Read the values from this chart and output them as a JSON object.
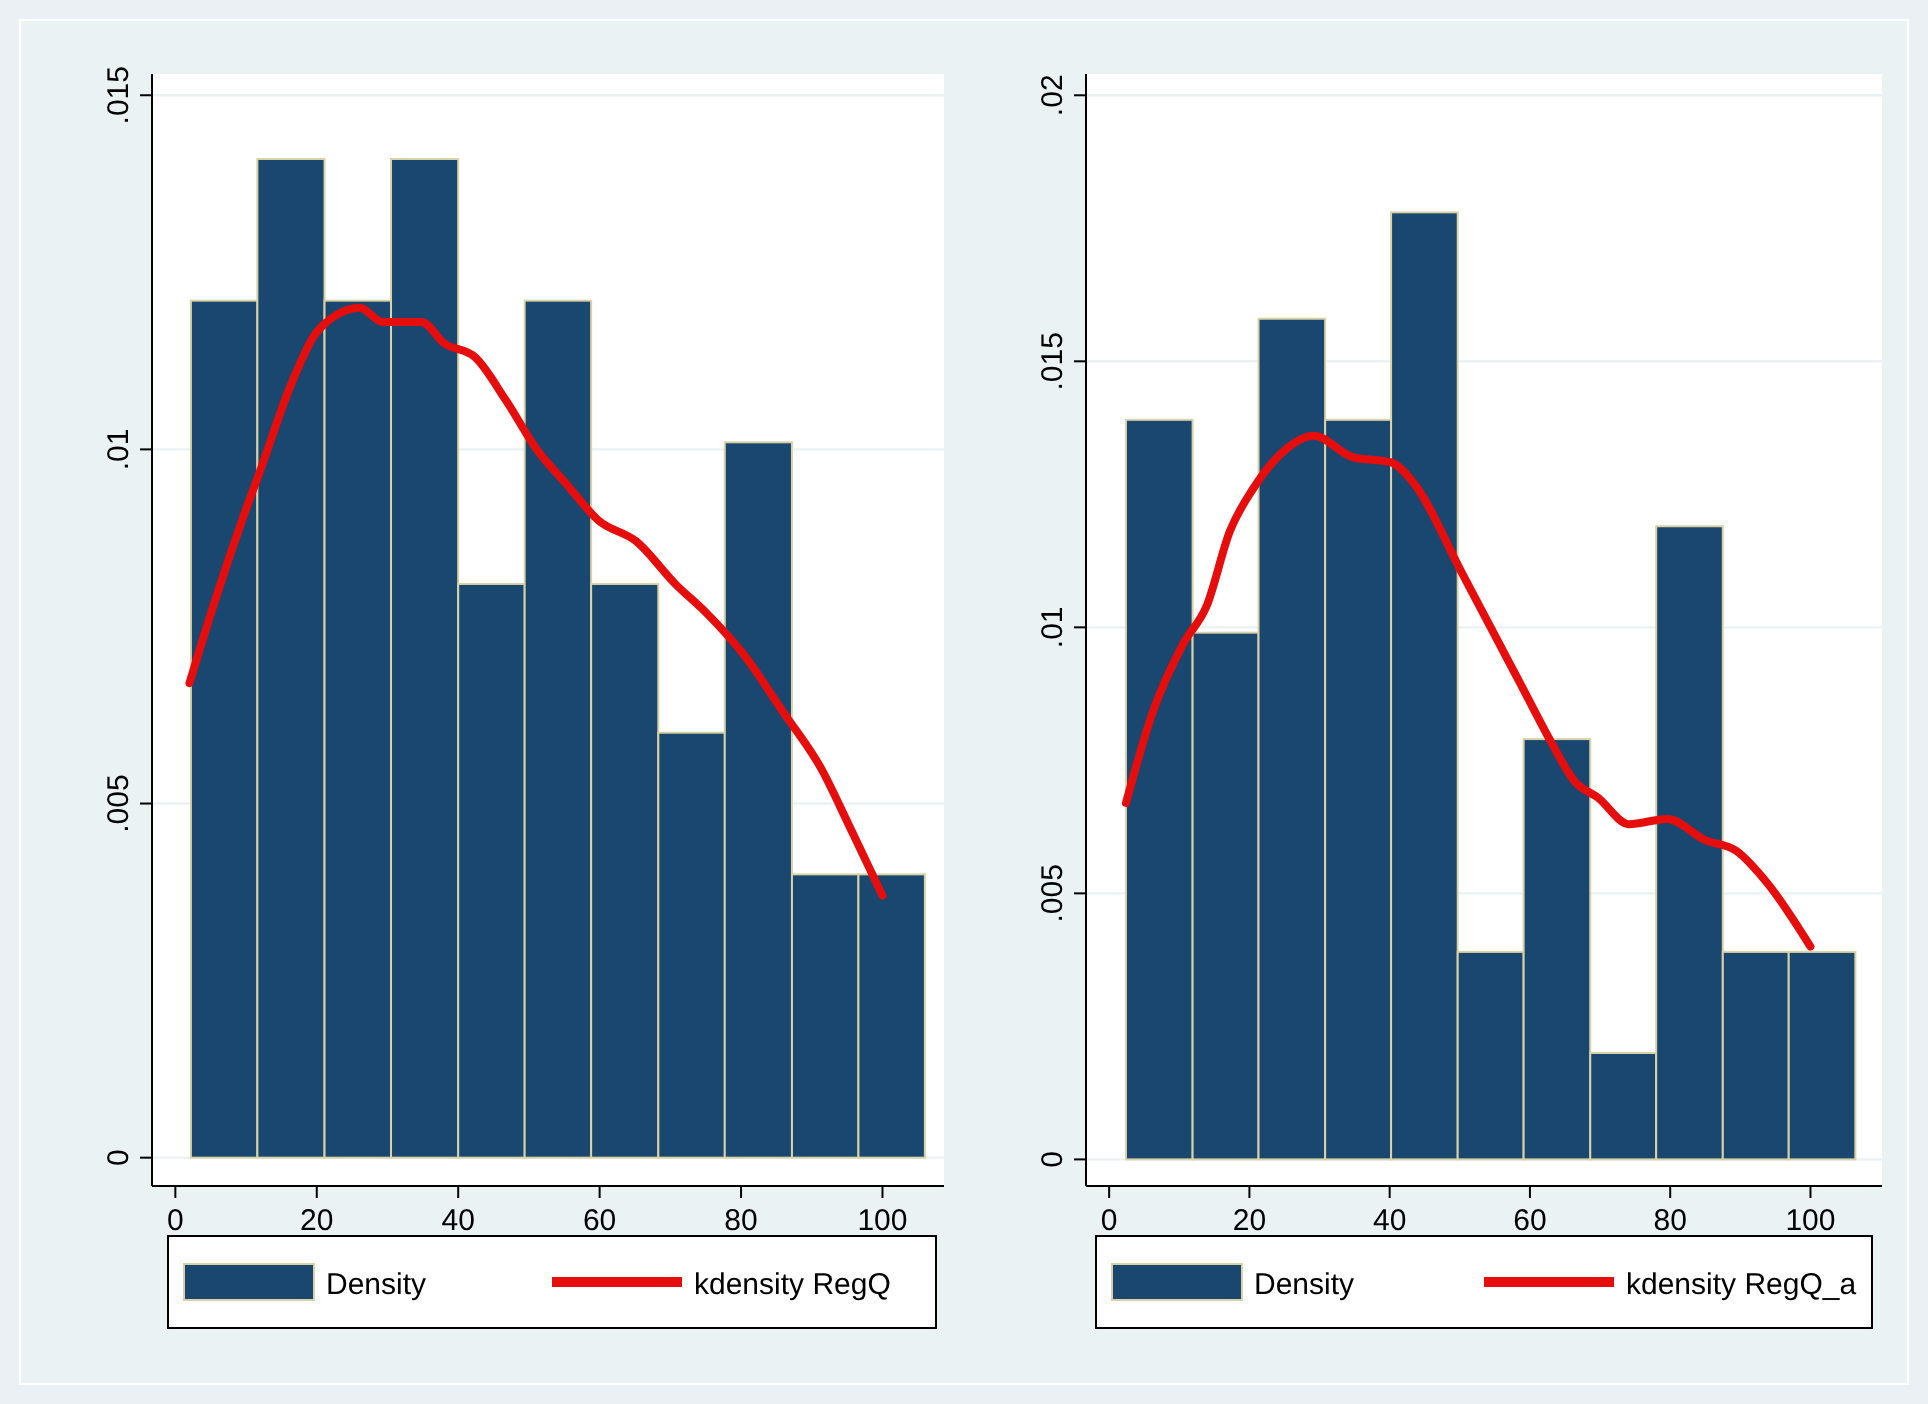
{
  "chart_data": [
    {
      "type": "histogram",
      "bins": [
        2.2,
        11.6,
        21.1,
        30.5,
        40,
        49.4,
        58.8,
        68.3,
        77.7,
        87.2,
        96.6,
        106
      ],
      "series": [
        {
          "name": "Density",
          "color": "#1a476f",
          "values": [
            0.0121,
            0.0141,
            0.0121,
            0.0141,
            0.0081,
            0.0121,
            0.0081,
            0.006,
            0.0101,
            0.004,
            0.004
          ]
        },
        {
          "type": "line",
          "name": "kdensity RegQ",
          "color": "#e60d0d",
          "x": [
            2,
            5.4,
            9.8,
            12,
            16.3,
            19.6,
            22.8,
            26.1,
            29.3,
            34.8,
            38,
            42.4,
            46.7,
            51.1,
            55.4,
            59.8,
            65.2,
            70.7,
            75,
            80.4,
            85.9,
            91.3,
            95.7,
            100
          ],
          "values": [
            0.0067,
            0.0078,
            0.0091,
            0.0097,
            0.0109,
            0.0116,
            0.0119,
            0.012,
            0.0118,
            0.0118,
            0.0115,
            0.0113,
            0.0107,
            0.01,
            0.0095,
            0.009,
            0.0087,
            0.0081,
            0.0077,
            0.0071,
            0.0063,
            0.0055,
            0.0046,
            0.0037
          ]
        }
      ],
      "xlim": [
        -3.3,
        108.7
      ],
      "xticks": [
        0,
        20,
        40,
        60,
        80,
        100
      ],
      "ylim": [
        -0.0004,
        0.0153
      ],
      "yticks": [
        0,
        {
          "value": 0.005,
          "label": ".005"
        },
        {
          "value": 0.01,
          "label": ".01"
        },
        {
          "value": 0.015,
          "label": ".015"
        }
      ],
      "grid": "y",
      "legend": "bottom",
      "line_style": "solid",
      "marker": "none"
    },
    {
      "type": "histogram",
      "bins": [
        2.4,
        11.9,
        21.3,
        30.8,
        40.2,
        49.7,
        59.1,
        68.6,
        78,
        87.5,
        96.9,
        106.4
      ],
      "series": [
        {
          "name": "Density",
          "color": "#1a476f",
          "values": [
            0.0139,
            0.0099,
            0.0158,
            0.0139,
            0.0178,
            0.0039,
            0.0079,
            0.002,
            0.0119,
            0.0039,
            0.0039
          ]
        },
        {
          "type": "line",
          "name": "kdensity RegQ_a",
          "color": "#e60d0d",
          "x": [
            2.4,
            6.2,
            10.6,
            13.9,
            17.2,
            20.5,
            24.8,
            29.2,
            34.7,
            40.2,
            43.5,
            50,
            54.4,
            58.8,
            63.2,
            66.4,
            69.7,
            74.1,
            79.6,
            85,
            89.4,
            93.8,
            100
          ],
          "values": [
            0.0067,
            0.0084,
            0.0097,
            0.0104,
            0.0118,
            0.0126,
            0.0133,
            0.0136,
            0.0132,
            0.0131,
            0.0127,
            0.0111,
            0.01,
            0.0089,
            0.0078,
            0.0071,
            0.0068,
            0.0063,
            0.0064,
            0.006,
            0.0058,
            0.0052,
            0.004
          ]
        }
      ],
      "xlim": [
        -3.3,
        110.2
      ],
      "xticks": [
        0,
        20,
        40,
        60,
        80,
        100
      ],
      "ylim": [
        -0.0005,
        0.0204
      ],
      "yticks": [
        0,
        {
          "value": 0.005,
          "label": ".005"
        },
        {
          "value": 0.01,
          "label": ".01"
        },
        {
          "value": 0.015,
          "label": ".015"
        },
        {
          "value": 0.02,
          "label": ".02"
        }
      ],
      "grid": "y",
      "legend": "bottom",
      "line_style": "solid",
      "marker": "none"
    }
  ]
}
